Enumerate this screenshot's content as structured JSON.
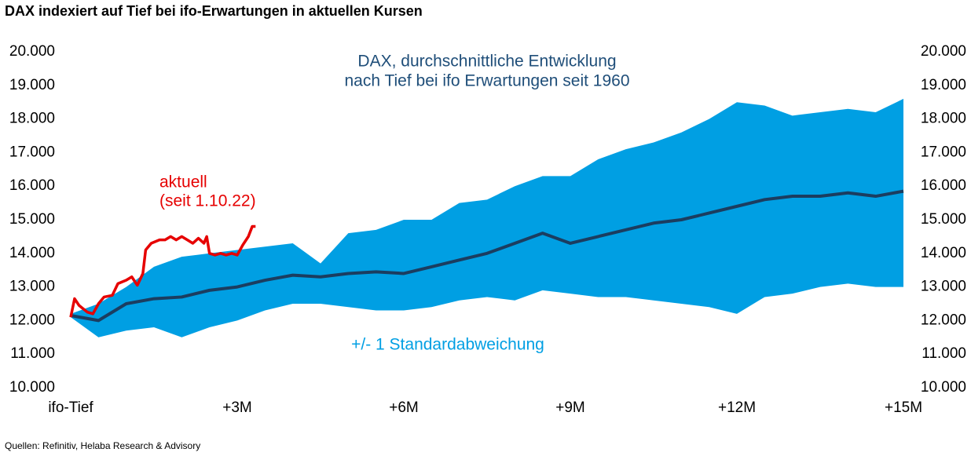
{
  "chart_data": {
    "type": "band-line",
    "title": "DAX indexiert auf Tief bei ifo-Erwartungen in aktuellen Kursen",
    "source": "Quellen: Refinitiv, Helaba Research & Advisory",
    "annotations": [
      "DAX, durchschnittliche Entwicklung",
      "nach Tief bei ifo Erwartungen seit 1960",
      "+/- 1 Standardabweichung",
      "aktuell",
      "(seit 1.10.22)"
    ],
    "xlim": [
      0,
      15
    ],
    "xticks": [
      {
        "value": 0,
        "label": "ifo-Tief"
      },
      {
        "value": 3,
        "label": "+3M"
      },
      {
        "value": 6,
        "label": "+6M"
      },
      {
        "value": 9,
        "label": "+9M"
      },
      {
        "value": 12,
        "label": "+12M"
      },
      {
        "value": 15,
        "label": "+15M"
      }
    ],
    "ylim": [
      10000,
      20000
    ],
    "yticks": [
      {
        "value": 10000,
        "label": "10.000"
      },
      {
        "value": 11000,
        "label": "11.000"
      },
      {
        "value": 12000,
        "label": "12.000"
      },
      {
        "value": 13000,
        "label": "13.000"
      },
      {
        "value": 14000,
        "label": "14.000"
      },
      {
        "value": 15000,
        "label": "15.000"
      },
      {
        "value": 16000,
        "label": "16.000"
      },
      {
        "value": 17000,
        "label": "17.000"
      },
      {
        "value": 18000,
        "label": "18.000"
      },
      {
        "value": 19000,
        "label": "19.000"
      },
      {
        "value": 20000,
        "label": "20.000"
      }
    ],
    "y2lim": [
      10000,
      20000
    ],
    "y2ticks": [
      {
        "value": 10000,
        "label": "10.000"
      },
      {
        "value": 11000,
        "label": "11.000"
      },
      {
        "value": 12000,
        "label": "12.000"
      },
      {
        "value": 13000,
        "label": "13.000"
      },
      {
        "value": 14000,
        "label": "14.000"
      },
      {
        "value": 15000,
        "label": "15.000"
      },
      {
        "value": 16000,
        "label": "16.000"
      },
      {
        "value": 17000,
        "label": "17.000"
      },
      {
        "value": 18000,
        "label": "18.000"
      },
      {
        "value": 19000,
        "label": "19.000"
      },
      {
        "value": 20000,
        "label": "20.000"
      }
    ],
    "x": [
      0,
      0.5,
      1,
      1.5,
      2,
      2.5,
      3,
      3.5,
      4,
      4.5,
      5,
      5.5,
      6,
      6.5,
      7,
      7.5,
      8,
      8.5,
      9,
      9.5,
      10,
      10.5,
      11,
      11.5,
      12,
      12.5,
      13,
      13.5,
      14,
      14.5,
      15
    ],
    "band": {
      "color": "#009fe3",
      "upper": [
        12200,
        12500,
        13000,
        13600,
        13900,
        14000,
        14100,
        14200,
        14300,
        13700,
        14600,
        14700,
        15000,
        15000,
        15500,
        15600,
        16000,
        16300,
        16300,
        16800,
        17100,
        17300,
        17600,
        18000,
        18500,
        18400,
        18100,
        18200,
        18300,
        18200,
        18600
      ],
      "lower": [
        12100,
        11500,
        11700,
        11800,
        11500,
        11800,
        12000,
        12300,
        12500,
        12500,
        12400,
        12300,
        12300,
        12400,
        12600,
        12700,
        12600,
        12900,
        12800,
        12700,
        12700,
        12600,
        12500,
        12400,
        12200,
        12700,
        12800,
        13000,
        13100,
        13000,
        13000
      ]
    },
    "mean": {
      "color": "#1b3d60",
      "values": [
        12150,
        12000,
        12500,
        12650,
        12700,
        12900,
        13000,
        13200,
        13350,
        13300,
        13400,
        13450,
        13400,
        13600,
        13800,
        14000,
        14300,
        14600,
        14300,
        14500,
        14700,
        14900,
        15000,
        15200,
        15400,
        15600,
        15700,
        15700,
        15800,
        15700,
        15850
      ]
    },
    "current": {
      "color": "#e60000",
      "x": [
        0,
        0.07,
        0.15,
        0.3,
        0.4,
        0.5,
        0.6,
        0.75,
        0.85,
        1.0,
        1.1,
        1.2,
        1.3,
        1.35,
        1.45,
        1.6,
        1.7,
        1.8,
        1.9,
        2.0,
        2.1,
        2.2,
        2.3,
        2.4,
        2.45,
        2.5,
        2.6,
        2.7,
        2.8,
        2.9,
        3.0,
        3.1,
        3.2,
        3.27,
        3.33
      ],
      "values": [
        12100,
        12650,
        12450,
        12250,
        12200,
        12500,
        12700,
        12750,
        13100,
        13200,
        13300,
        13050,
        13400,
        14100,
        14300,
        14400,
        14400,
        14500,
        14400,
        14500,
        14400,
        14300,
        14450,
        14300,
        14500,
        14000,
        13950,
        14000,
        13950,
        14000,
        13950,
        14250,
        14500,
        14800,
        14800
      ]
    }
  }
}
